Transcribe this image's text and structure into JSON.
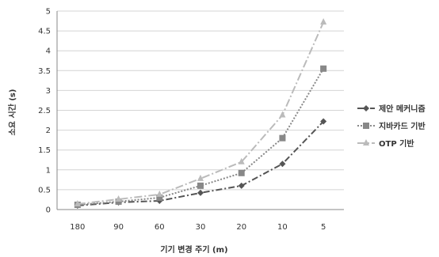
{
  "chart_data": {
    "type": "line",
    "title": "",
    "xlabel": "기기 변경 주기 (m)",
    "ylabel": "소요 시간 (s)",
    "categories": [
      "180",
      "90",
      "60",
      "30",
      "20",
      "10",
      "5"
    ],
    "ylim": [
      0,
      5
    ],
    "yticks": [
      "0",
      "0.5",
      "1",
      "1.5",
      "2",
      "2.5",
      "3",
      "3.5",
      "4",
      "4.5",
      "5"
    ],
    "grid": true,
    "legend_position": "right",
    "series": [
      {
        "name": "제안 메커니즘",
        "values": [
          0.1,
          0.18,
          0.22,
          0.42,
          0.6,
          1.15,
          2.22
        ],
        "color": "#555555",
        "dash": "8,3,2,3",
        "marker": "diamond"
      },
      {
        "name": "지바카드 기반",
        "values": [
          0.12,
          0.2,
          0.3,
          0.6,
          0.92,
          1.8,
          3.55
        ],
        "color": "#888888",
        "dash": "2,2",
        "marker": "square"
      },
      {
        "name": "OTP 기반",
        "values": [
          0.14,
          0.26,
          0.38,
          0.78,
          1.2,
          2.38,
          4.72
        ],
        "color": "#bbbbbb",
        "dash": "10,3,2,3",
        "marker": "triangle"
      }
    ]
  }
}
